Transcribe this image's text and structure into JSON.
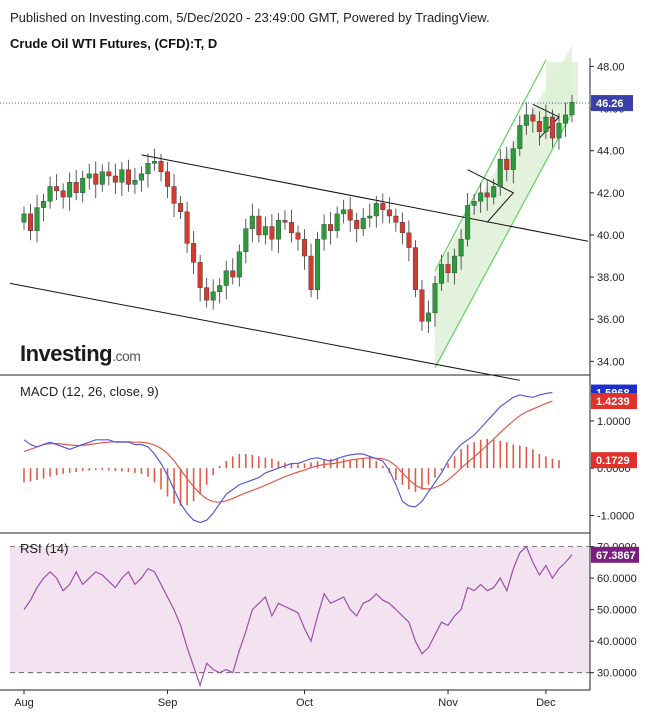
{
  "header": {
    "published": "Published on Investing.com, 5/Dec/2020 - 23:49:00 GMT, Powered by TradingView.",
    "instrument": "Crude Oil WTI Futures, (CFD):T, D"
  },
  "watermark": {
    "brand": "Investing",
    "suffix": ".com"
  },
  "colors": {
    "up": "#2a9d3a",
    "down": "#d63a2f",
    "macd": "#5b5bd6",
    "signal": "#e05a4a",
    "rsi": "#9b4fa8",
    "rsi_band": "#f3e3f1",
    "channel_fill": "#dcefd4",
    "channel_line": "#5fd35f"
  },
  "chart_data": [
    {
      "type": "candlestick",
      "title": "Crude Oil WTI Futures, (CFD):T, D",
      "x_ticks": [
        "Aug",
        "Sep",
        "Oct",
        "Nov",
        "Dec"
      ],
      "y_ticks": [
        "48.00",
        "46.00",
        "44.00",
        "42.00",
        "40.00",
        "38.00",
        "36.00",
        "34.00"
      ],
      "ylim": [
        33.4,
        48.4
      ],
      "last_price": "46.26",
      "last_value": 46.26,
      "closes": [
        41.0,
        40.2,
        41.3,
        41.6,
        42.3,
        42.1,
        41.8,
        42.5,
        42.0,
        42.7,
        42.9,
        42.4,
        43.0,
        42.8,
        42.5,
        43.1,
        42.4,
        42.6,
        42.9,
        43.4,
        43.5,
        43.0,
        42.3,
        41.5,
        41.1,
        39.6,
        38.7,
        37.5,
        36.9,
        37.3,
        37.6,
        38.3,
        38.0,
        39.2,
        40.3,
        40.9,
        40.0,
        40.4,
        39.8,
        40.7,
        40.6,
        40.1,
        39.8,
        39.0,
        37.4,
        39.8,
        40.5,
        40.2,
        41.0,
        41.2,
        40.7,
        40.3,
        40.8,
        40.9,
        41.5,
        41.2,
        40.9,
        40.6,
        40.1,
        39.4,
        37.4,
        35.9,
        36.3,
        37.7,
        38.6,
        38.2,
        39.0,
        39.8,
        41.4,
        41.6,
        42.0,
        41.8,
        42.3,
        43.6,
        43.1,
        44.1,
        45.2,
        45.7,
        45.4,
        44.9,
        45.6,
        44.6,
        45.3,
        45.7,
        46.3
      ]
    },
    {
      "type": "line",
      "title": "MACD (12, 26, close, 9)",
      "y_ticks": [
        "1.0000",
        "0.0000",
        "-1.0000"
      ],
      "ylim": [
        -1.35,
        1.95
      ],
      "series": [
        {
          "name": "MACD",
          "last": "1.5968",
          "values": [
            0.6,
            0.5,
            0.45,
            0.5,
            0.55,
            0.5,
            0.45,
            0.4,
            0.45,
            0.5,
            0.55,
            0.6,
            0.6,
            0.6,
            0.55,
            0.55,
            0.55,
            0.5,
            0.5,
            0.45,
            0.3,
            0.1,
            -0.15,
            -0.45,
            -0.75,
            -0.95,
            -1.1,
            -1.15,
            -1.1,
            -0.95,
            -0.75,
            -0.55,
            -0.45,
            -0.35,
            -0.3,
            -0.25,
            -0.2,
            -0.1,
            -0.05,
            0.0,
            0.05,
            0.1,
            0.1,
            0.15,
            0.2,
            0.22,
            0.18,
            0.15,
            0.2,
            0.25,
            0.28,
            0.3,
            0.3,
            0.25,
            0.2,
            0.15,
            -0.05,
            -0.35,
            -0.7,
            -0.8,
            -0.82,
            -0.7,
            -0.5,
            -0.3,
            -0.1,
            0.15,
            0.35,
            0.5,
            0.6,
            0.7,
            0.85,
            1.0,
            1.15,
            1.3,
            1.4,
            1.5,
            1.55,
            1.52,
            1.5,
            1.55,
            1.58,
            1.6
          ]
        },
        {
          "name": "Signal",
          "last": "1.4239",
          "values": [
            0.35,
            0.4,
            0.45,
            0.5,
            0.52,
            0.52,
            0.51,
            0.49,
            0.48,
            0.48,
            0.5,
            0.52,
            0.54,
            0.55,
            0.56,
            0.56,
            0.56,
            0.55,
            0.55,
            0.53,
            0.49,
            0.42,
            0.31,
            0.16,
            -0.03,
            -0.22,
            -0.39,
            -0.54,
            -0.65,
            -0.71,
            -0.72,
            -0.69,
            -0.64,
            -0.58,
            -0.52,
            -0.47,
            -0.42,
            -0.36,
            -0.3,
            -0.24,
            -0.18,
            -0.13,
            -0.08,
            -0.04,
            0.01,
            0.05,
            0.08,
            0.09,
            0.11,
            0.14,
            0.17,
            0.19,
            0.21,
            0.22,
            0.21,
            0.2,
            0.15,
            0.05,
            -0.1,
            -0.24,
            -0.36,
            -0.43,
            -0.44,
            -0.41,
            -0.35,
            -0.25,
            -0.13,
            0.0,
            0.12,
            0.24,
            0.36,
            0.49,
            0.62,
            0.75,
            0.88,
            1.0,
            1.11,
            1.19,
            1.25,
            1.31,
            1.37,
            1.42
          ]
        },
        {
          "name": "Histogram",
          "last": "0.1729",
          "values": [
            -0.3,
            -0.28,
            -0.25,
            -0.22,
            -0.18,
            -0.15,
            -0.12,
            -0.1,
            -0.08,
            -0.06,
            -0.05,
            -0.04,
            -0.04,
            -0.05,
            -0.06,
            -0.07,
            -0.08,
            -0.1,
            -0.12,
            -0.18,
            -0.3,
            -0.45,
            -0.6,
            -0.75,
            -0.8,
            -0.78,
            -0.7,
            -0.55,
            -0.35,
            -0.15,
            0.05,
            0.15,
            0.25,
            0.3,
            0.3,
            0.28,
            0.25,
            0.22,
            0.2,
            0.15,
            0.12,
            0.1,
            0.08,
            0.1,
            0.12,
            0.15,
            0.18,
            0.2,
            0.22,
            0.2,
            0.18,
            0.2,
            0.22,
            0.25,
            0.15,
            0.05,
            -0.1,
            -0.25,
            -0.35,
            -0.45,
            -0.5,
            -0.45,
            -0.35,
            -0.2,
            -0.05,
            0.1,
            0.25,
            0.4,
            0.5,
            0.55,
            0.6,
            0.62,
            0.6,
            0.58,
            0.55,
            0.5,
            0.48,
            0.45,
            0.4,
            0.3,
            0.25,
            0.2,
            0.17
          ]
        }
      ]
    },
    {
      "type": "line",
      "title": "RSI (14)",
      "y_ticks": [
        "70.0000",
        "60.0000",
        "50.0000",
        "40.0000",
        "30.0000"
      ],
      "ylim": [
        24.5,
        74.0
      ],
      "band": [
        30,
        70
      ],
      "last": "67.3867",
      "values": [
        50,
        53,
        57,
        60,
        62,
        60,
        56,
        58,
        62,
        58,
        60,
        62,
        61,
        59,
        57,
        60,
        62,
        58,
        60,
        63,
        62,
        58,
        54,
        50,
        45,
        38,
        32,
        26,
        33,
        31,
        30,
        31,
        30,
        37,
        43,
        50,
        52,
        54,
        48,
        52,
        51,
        50,
        49,
        44,
        40,
        48,
        55,
        52,
        53,
        54,
        50,
        48,
        52,
        53,
        55,
        53,
        52,
        50,
        48,
        46,
        40,
        36,
        38,
        42,
        46,
        45,
        48,
        50,
        57,
        56,
        58,
        56,
        57,
        60,
        56,
        63,
        68,
        70,
        65,
        61,
        64,
        60,
        63,
        65,
        67.4
      ]
    }
  ]
}
